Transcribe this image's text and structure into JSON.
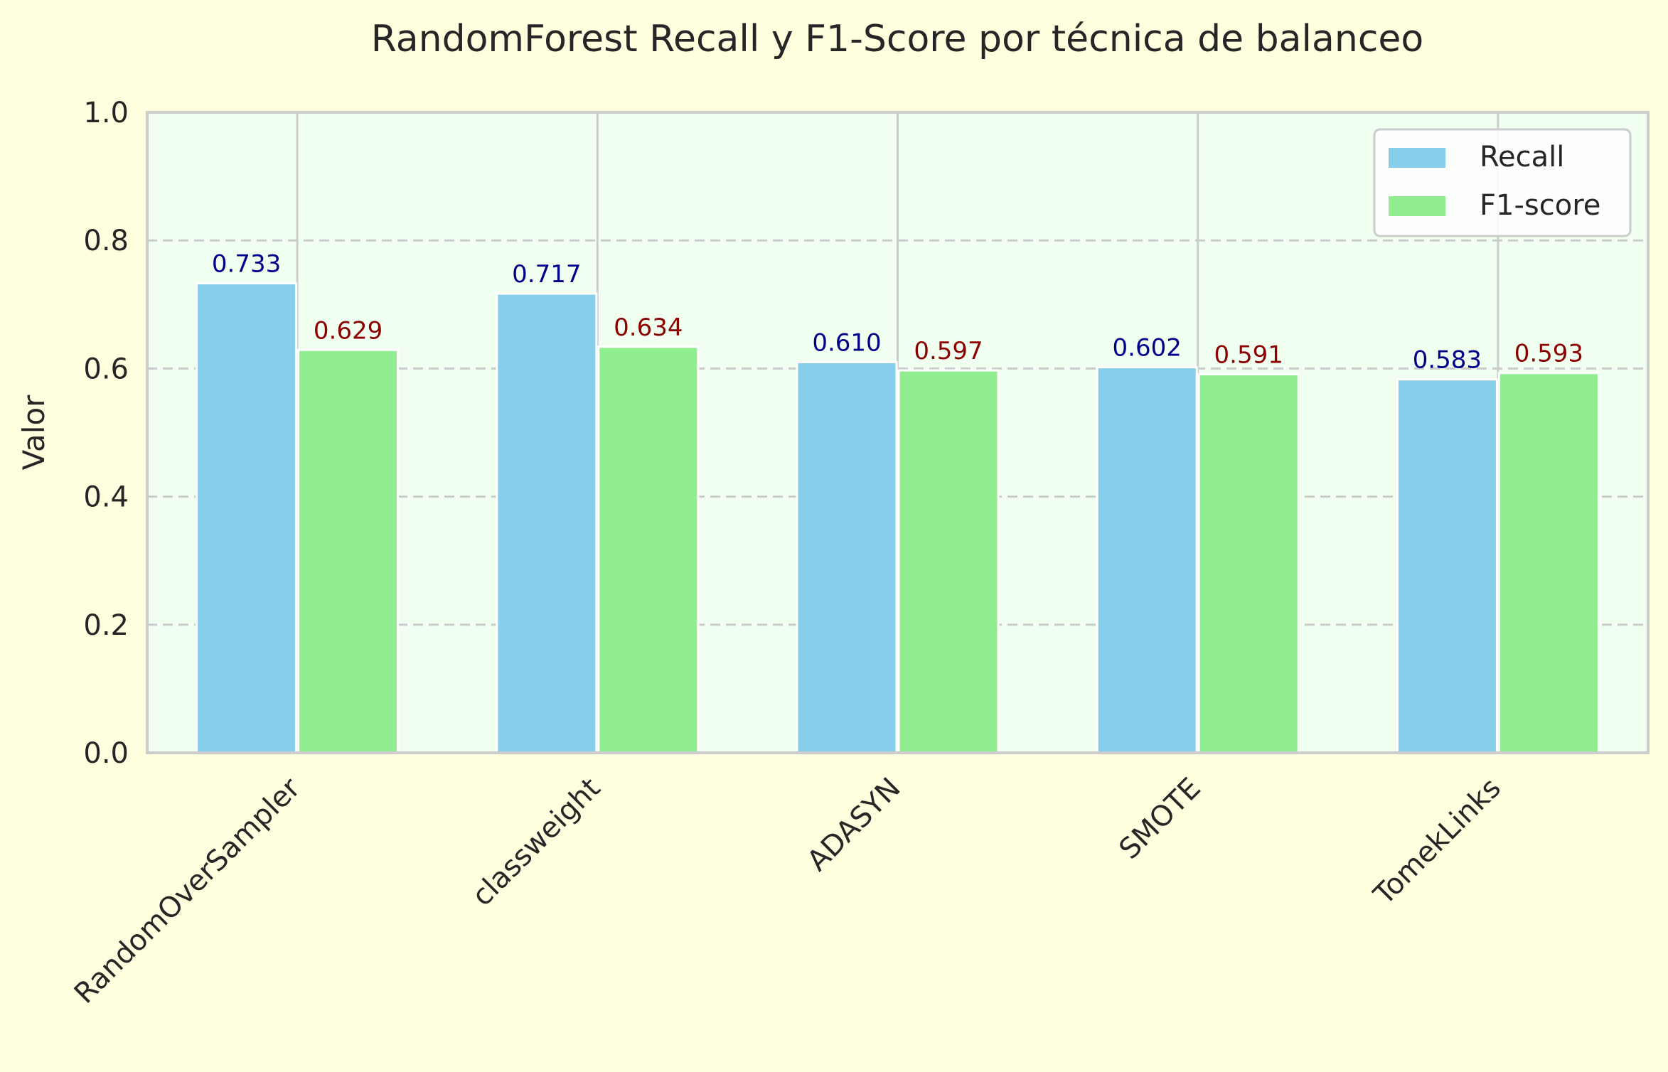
{
  "chart_data": {
    "type": "bar",
    "title": "RandomForest Recall y F1-Score por técnica de balanceo",
    "xlabel": "",
    "ylabel": "Valor",
    "ylim": [
      0,
      1.0
    ],
    "yticks": [
      "0.0",
      "0.2",
      "0.4",
      "0.6",
      "0.8",
      "1.0"
    ],
    "categories": [
      "RandomOverSampler",
      "classweight",
      "ADASYN",
      "SMOTE",
      "TomekLinks"
    ],
    "series": [
      {
        "name": "Recall",
        "values": [
          0.733,
          0.717,
          0.61,
          0.602,
          0.583
        ],
        "labels": [
          "0.733",
          "0.717",
          "0.610",
          "0.602",
          "0.583"
        ],
        "color": "#87ceeb",
        "label_color": "#00008b"
      },
      {
        "name": "F1-score",
        "values": [
          0.629,
          0.634,
          0.597,
          0.591,
          0.593
        ],
        "labels": [
          "0.629",
          "0.634",
          "0.597",
          "0.591",
          "0.593"
        ],
        "color": "#90ee90",
        "label_color": "#8b0000"
      }
    ],
    "grid": "y-dashed",
    "legend_position": "top-right",
    "plot_background": "#f0fff0",
    "page_background": "#ffffe0"
  }
}
